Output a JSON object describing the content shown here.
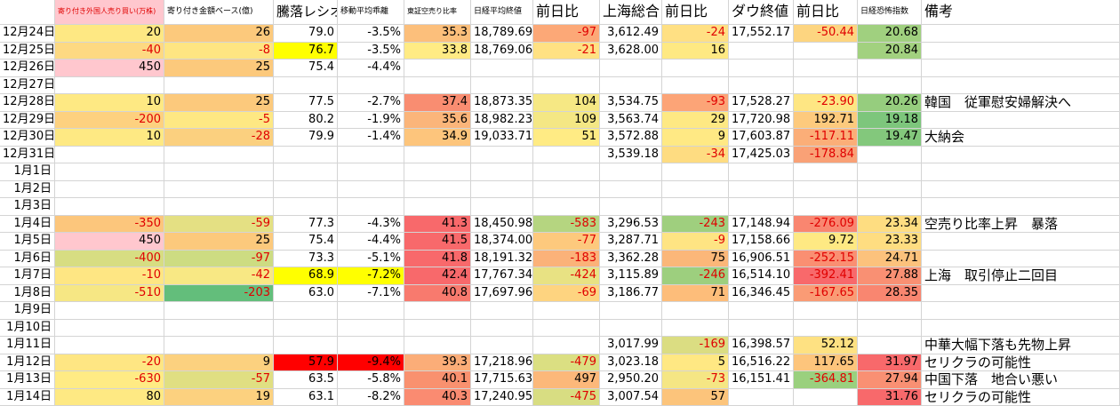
{
  "table": {
    "header": [
      "寄り付き外国人売り買い(万株)",
      "寄り付き金額ベース(億)",
      "騰落レシオ",
      "移動平均乖離",
      "東証空売り比率",
      "日経平均終値",
      "前日比",
      "上海総合",
      "前日比",
      "ダウ終値",
      "前日比",
      "日経恐怖指数",
      "備考"
    ],
    "header_fills": [
      "#ffc7ce",
      null,
      null,
      null,
      null,
      null,
      null,
      null,
      null,
      null,
      null,
      null,
      null
    ],
    "rows": [
      [
        "12月24日",
        "20",
        "26",
        "79.0",
        "-3.5%",
        "35.3",
        "18,789.69",
        "-97",
        "3,612.49",
        "-24",
        "17,552.17",
        "-50.44",
        "20.68",
        null
      ],
      [
        "12月25日",
        "-40",
        "-8",
        "76.7",
        "-3.5%",
        "33.8",
        "18,769.06",
        "-21",
        "3,628.00",
        "16",
        null,
        null,
        "20.84",
        null
      ],
      [
        "12月26日",
        "450",
        "25",
        "75.4",
        "-4.4%",
        null,
        null,
        null,
        null,
        null,
        null,
        null,
        null,
        null
      ],
      [
        "12月27日",
        null,
        null,
        null,
        null,
        null,
        null,
        null,
        null,
        null,
        null,
        null,
        null,
        null
      ],
      [
        "12月28日",
        "10",
        "25",
        "77.5",
        "-2.7%",
        "37.4",
        "18,873.35",
        "104",
        "3,534.75",
        "-93",
        "17,528.27",
        "-23.90",
        "20.26",
        "韓国　従軍慰安婦解決へ"
      ],
      [
        "12月29日",
        "-200",
        "-5",
        "80.2",
        "-1.9%",
        "35.6",
        "18,982.23",
        "109",
        "3,563.74",
        "29",
        "17,720.98",
        "192.71",
        "19.18",
        null
      ],
      [
        "12月30日",
        "10",
        "-28",
        "79.9",
        "-1.4%",
        "34.9",
        "19,033.71",
        "51",
        "3,572.88",
        "9",
        "17,603.87",
        "-117.11",
        "19.47",
        "大納会"
      ],
      [
        "12月31日",
        null,
        null,
        null,
        null,
        null,
        null,
        null,
        "3,539.18",
        "-34",
        "17,425.03",
        "-178.84",
        null,
        null
      ],
      [
        "1月1日",
        null,
        null,
        null,
        null,
        null,
        null,
        null,
        null,
        null,
        null,
        null,
        null,
        null
      ],
      [
        "1月2日",
        null,
        null,
        null,
        null,
        null,
        null,
        null,
        null,
        null,
        null,
        null,
        null,
        null
      ],
      [
        "1月3日",
        null,
        null,
        null,
        null,
        null,
        null,
        null,
        null,
        null,
        null,
        null,
        null,
        null
      ],
      [
        "1月4日",
        "-350",
        "-59",
        "77.3",
        "-4.3%",
        "41.3",
        "18,450.98",
        "-583",
        "3,296.53",
        "-243",
        "17,148.94",
        "-276.09",
        "23.34",
        "空売り比率上昇　暴落"
      ],
      [
        "1月5日",
        "450",
        "25",
        "75.4",
        "-4.4%",
        "41.5",
        "18,374.00",
        "-77",
        "3,287.71",
        "-9",
        "17,158.66",
        "9.72",
        "23.33",
        null
      ],
      [
        "1月6日",
        "-400",
        "-97",
        "73.3",
        "-5.1%",
        "41.8",
        "18,191.32",
        "-183",
        "3,362.28",
        "75",
        "16,906.51",
        "-252.15",
        "24.71",
        null
      ],
      [
        "1月7日",
        "-10",
        "-42",
        "68.9",
        "-7.2%",
        "42.4",
        "17,767.34",
        "-424",
        "3,115.89",
        "-246",
        "16,514.10",
        "-392.41",
        "27.88",
        "上海　取引停止二回目"
      ],
      [
        "1月8日",
        "-510",
        "-203",
        "63.0",
        "-7.1%",
        "40.8",
        "17,697.96",
        "-69",
        "3,186.77",
        "71",
        "16,346.45",
        "-167.65",
        "28.35",
        null
      ],
      [
        "1月9日",
        null,
        null,
        null,
        null,
        null,
        null,
        null,
        null,
        null,
        null,
        null,
        null,
        null
      ],
      [
        "1月10日",
        null,
        null,
        null,
        null,
        null,
        null,
        null,
        null,
        null,
        null,
        null,
        null,
        null
      ],
      [
        "1月11日",
        null,
        null,
        null,
        null,
        null,
        null,
        null,
        "3,017.99",
        "-169",
        "16,398.57",
        "52.12",
        null,
        "中華大幅下落も先物上昇"
      ],
      [
        "1月12日",
        "-20",
        "9",
        "57.9",
        "-9.4%",
        "39.3",
        "17,218.96",
        "-479",
        "3,023.18",
        "5",
        "16,516.22",
        "117.65",
        "31.97",
        "セリクラの可能性"
      ],
      [
        "1月13日",
        "-630",
        "-57",
        "63.5",
        "-5.8%",
        "40.1",
        "17,715.63",
        "497",
        "2,950.20",
        "-73",
        "16,151.41",
        "-364.81",
        "27.94",
        "中国下落　地合い悪い"
      ],
      [
        "1月14日",
        "80",
        "19",
        "63.1",
        "-8.2%",
        "40.3",
        "17,240.95",
        "-475",
        "3,007.54",
        "57",
        null,
        null,
        "31.76",
        "セリクラの可能性"
      ]
    ],
    "fills": [
      [
        null,
        "#fee883",
        "#fcc97c",
        null,
        null,
        "#fcbf7b",
        null,
        "#fca877",
        null,
        "#ffe083",
        null,
        "#fdd580",
        "#a0d07f",
        null
      ],
      [
        null,
        "#fdd982",
        "#fee582",
        "#ffff00",
        null,
        "#ffeb84",
        null,
        "#ffe183",
        null,
        "#fee983",
        null,
        null,
        "#a2d17f",
        null
      ],
      [
        null,
        "#ffc7ce",
        "#fcc97c",
        null,
        null,
        null,
        null,
        null,
        null,
        null,
        null,
        null,
        null,
        null
      ],
      [
        null,
        null,
        null,
        null,
        null,
        null,
        null,
        null,
        null,
        null,
        null,
        null,
        null,
        null
      ],
      [
        null,
        "#fee983",
        "#fcc97c",
        null,
        null,
        "#f98d71",
        null,
        "#f6e884",
        null,
        "#fca477",
        null,
        "#fee683",
        "#96cd7e",
        null
      ],
      [
        null,
        "#fdd17f",
        "#fee883",
        null,
        null,
        "#fbb57a",
        null,
        "#f4e784",
        null,
        "#fee983",
        null,
        "#fdca7d",
        "#7dc67c",
        null
      ],
      [
        null,
        "#fee983",
        "#fbd07f",
        null,
        null,
        "#fdc57c",
        null,
        "#ffeb84",
        null,
        "#ffe984",
        null,
        "#fbae78",
        "#83c87c",
        null
      ],
      [
        null,
        null,
        null,
        null,
        null,
        null,
        null,
        null,
        null,
        "#fedc81",
        null,
        "#f9a176",
        null,
        null
      ],
      [
        null,
        null,
        null,
        null,
        null,
        null,
        null,
        null,
        null,
        null,
        null,
        null,
        null,
        null
      ],
      [
        null,
        null,
        null,
        null,
        null,
        null,
        null,
        null,
        null,
        null,
        null,
        null,
        null,
        null
      ],
      [
        null,
        null,
        null,
        null,
        null,
        null,
        null,
        null,
        null,
        null,
        null,
        null,
        null,
        null
      ],
      [
        null,
        "#fcc67c",
        "#e4e083",
        null,
        null,
        "#f8696b",
        null,
        "#b5d580",
        null,
        "#9fcf7e",
        null,
        "#f98670",
        "#fedd81",
        null
      ],
      [
        null,
        "#ffc7ce",
        "#fcc97c",
        null,
        null,
        "#f8696b",
        null,
        "#fdc97d",
        null,
        "#fee483",
        null,
        "#fee983",
        "#fedd81",
        null
      ],
      [
        null,
        "#d7dd82",
        "#cddc82",
        null,
        null,
        "#f8696b",
        null,
        "#fbb279",
        null,
        "#fbb779",
        null,
        "#fa8f72",
        "#fcc27c",
        null
      ],
      [
        null,
        "#fee683",
        "#f8e884",
        "#ffff00",
        "#ffff00",
        "#f8696b",
        null,
        "#e8e283",
        null,
        "#9dcf7e",
        null,
        "#f8696b",
        "#f99073",
        null
      ],
      [
        null,
        "#f6e784",
        "#63be7b",
        null,
        null,
        "#f87a6e",
        null,
        "#fed480",
        null,
        "#fdbd7a",
        null,
        "#fa9b75",
        "#f98670",
        null
      ],
      [
        null,
        null,
        null,
        null,
        null,
        null,
        null,
        null,
        null,
        null,
        null,
        null,
        null,
        null
      ],
      [
        null,
        null,
        null,
        null,
        null,
        null,
        null,
        null,
        null,
        null,
        null,
        null,
        null,
        null
      ],
      [
        null,
        null,
        null,
        null,
        null,
        null,
        null,
        null,
        null,
        "#dbdd82",
        null,
        "#fee182",
        null,
        null
      ],
      [
        null,
        "#fee683",
        "#fcd17f",
        "#ff0000",
        "#ff0000",
        "#fbad78",
        null,
        "#dbdf82",
        null,
        "#ffe883",
        null,
        "#fdc57c",
        "#f8696b",
        null
      ],
      [
        null,
        "#ffeb84",
        "#e0df82",
        null,
        null,
        "#f9916f",
        null,
        "#fcb87a",
        null,
        "#f5e684",
        null,
        "#9ad07e",
        "#f99073",
        null
      ],
      [
        null,
        "#fee983",
        "#fcd17f",
        null,
        null,
        "#fa8b71",
        null,
        "#d8dd82",
        null,
        "#fcc47b",
        null,
        null,
        "#f8696b",
        null
      ]
    ]
  }
}
